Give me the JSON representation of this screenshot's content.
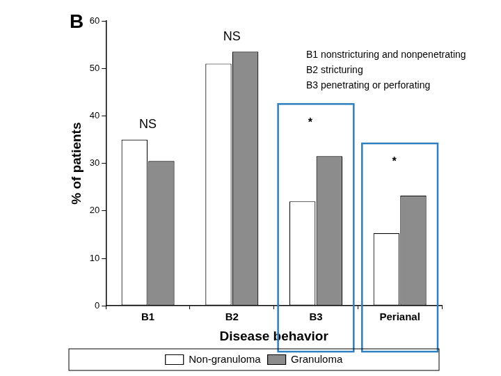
{
  "chart_data": {
    "type": "bar",
    "title": "B",
    "notes": [
      "B1 nonstricturing and nonpenetrating",
      "B2 stricturing",
      "B3 penetrating or perforating"
    ],
    "x_label": "Disease behavior",
    "y_label": "% of patients",
    "categories": [
      "B1",
      "B2",
      "B3",
      "Perianal"
    ],
    "series": [
      {
        "name": "Non-granuloma",
        "color": "#ffffff",
        "values": [
          35,
          51,
          22,
          15.3
        ]
      },
      {
        "name": "Granuloma",
        "color": "#8c8c8c",
        "values": [
          30.5,
          53.5,
          31.5,
          23.2
        ]
      }
    ],
    "annotations": [
      {
        "category": "B1",
        "text": "NS"
      },
      {
        "category": "B2",
        "text": "NS"
      },
      {
        "category": "B3",
        "text": "*"
      },
      {
        "category": "Perianal",
        "text": "*"
      }
    ],
    "ylim": [
      0,
      60
    ],
    "yticks": [
      0,
      10,
      20,
      30,
      40,
      50,
      60
    ],
    "grid": false,
    "legend": "bottom"
  }
}
